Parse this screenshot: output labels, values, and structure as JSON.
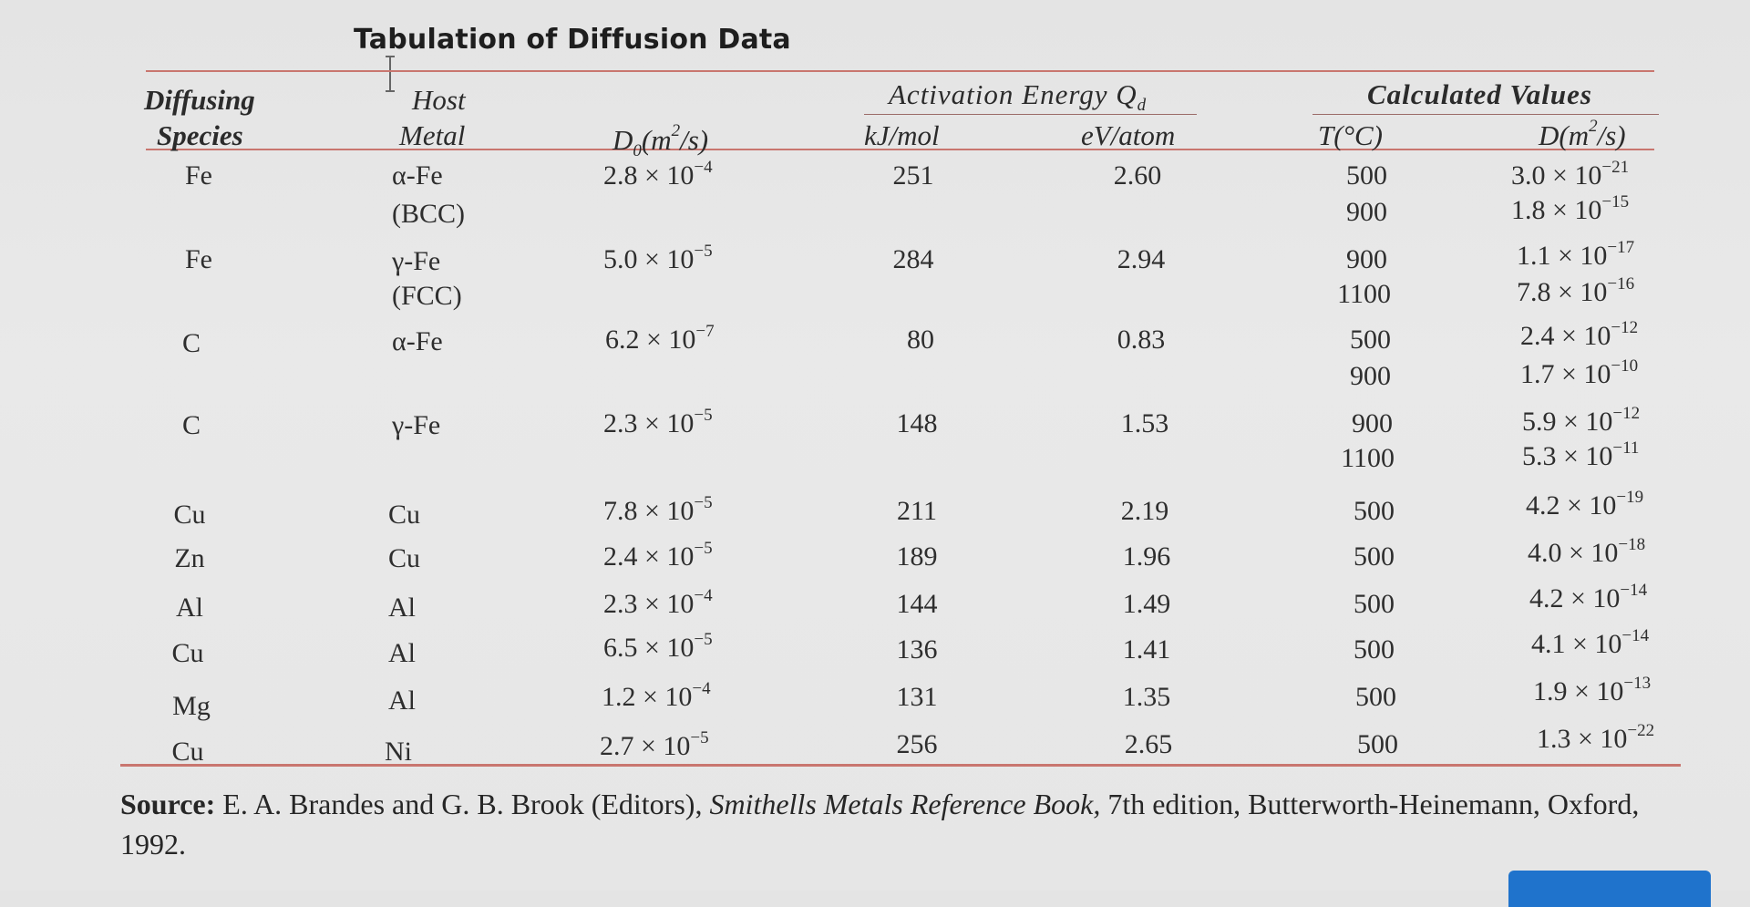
{
  "title": "Tabulation of Diffusion Data",
  "headers": {
    "diffusing_species": [
      "Diffusing",
      "Species"
    ],
    "host_metal": [
      "Host",
      "Metal"
    ],
    "d0": "D",
    "d0_sub": "0",
    "d0_unit": "(m",
    "d0_unit_sup": "2",
    "d0_unit_end": "/s)",
    "activation_energy": "Activation Energy Q",
    "activation_energy_sub": "d",
    "kj_mol": "kJ/mol",
    "ev_atom": "eV/atom",
    "calculated_values": "Calculated Values",
    "t_c": "T(°C)",
    "d_calc": "D(m",
    "d_calc_sup": "2",
    "d_calc_end": "/s)"
  },
  "rows": [
    {
      "species": "Fe",
      "host": "α-Fe",
      "host2": "(BCC)",
      "d0_m": "2.8 × 10",
      "d0_e": "−4",
      "qkj": "251",
      "qev": "2.60",
      "t1": "500",
      "d1m": "3.0 × 10",
      "d1e": "−21",
      "t2": "900",
      "d2m": "1.8 × 10",
      "d2e": "−15"
    },
    {
      "species": "Fe",
      "host": "γ-Fe",
      "host2": "(FCC)",
      "d0_m": "5.0 × 10",
      "d0_e": "−5",
      "qkj": "284",
      "qev": "2.94",
      "t1": "900",
      "d1m": "1.1 × 10",
      "d1e": "−17",
      "t2": "1100",
      "d2m": "7.8 × 10",
      "d2e": "−16"
    },
    {
      "species": "C",
      "host": "α-Fe",
      "host2": "",
      "d0_m": "6.2 × 10",
      "d0_e": "−7",
      "qkj": "80",
      "qev": "0.83",
      "t1": "500",
      "d1m": "2.4 × 10",
      "d1e": "−12",
      "t2": "900",
      "d2m": "1.7 × 10",
      "d2e": "−10"
    },
    {
      "species": "C",
      "host": "γ-Fe",
      "host2": "",
      "d0_m": "2.3 × 10",
      "d0_e": "−5",
      "qkj": "148",
      "qev": "1.53",
      "t1": "900",
      "d1m": "5.9 × 10",
      "d1e": "−12",
      "t2": "1100",
      "d2m": "5.3 × 10",
      "d2e": "−11"
    },
    {
      "species": "Cu",
      "host": "Cu",
      "host2": "",
      "d0_m": "7.8 × 10",
      "d0_e": "−5",
      "qkj": "211",
      "qev": "2.19",
      "t1": "500",
      "d1m": "4.2 × 10",
      "d1e": "−19"
    },
    {
      "species": "Zn",
      "host": "Cu",
      "host2": "",
      "d0_m": "2.4 × 10",
      "d0_e": "−5",
      "qkj": "189",
      "qev": "1.96",
      "t1": "500",
      "d1m": "4.0 × 10",
      "d1e": "−18"
    },
    {
      "species": "Al",
      "host": "Al",
      "host2": "",
      "d0_m": "2.3 × 10",
      "d0_e": "−4",
      "qkj": "144",
      "qev": "1.49",
      "t1": "500",
      "d1m": "4.2 × 10",
      "d1e": "−14"
    },
    {
      "species": "Cu",
      "host": "Al",
      "host2": "",
      "d0_m": "6.5 × 10",
      "d0_e": "−5",
      "qkj": "136",
      "qev": "1.41",
      "t1": "500",
      "d1m": "4.1 × 10",
      "d1e": "−14"
    },
    {
      "species": "Mg",
      "host": "Al",
      "host2": "",
      "d0_m": "1.2 × 10",
      "d0_e": "−4",
      "qkj": "131",
      "qev": "1.35",
      "t1": "500",
      "d1m": "1.9 × 10",
      "d1e": "−13"
    },
    {
      "species": "Cu",
      "host": "Ni",
      "host2": "",
      "d0_m": "2.7 × 10",
      "d0_e": "−5",
      "qkj": "256",
      "qev": "2.65",
      "t1": "500",
      "d1m": "1.3 × 10",
      "d1e": "−22"
    }
  ],
  "source": {
    "label": "Source:",
    "authors": " E. A. Brandes and G. B. Brook (Editors), ",
    "book": "Smithells Metals Reference Book,",
    "rest": " 7th edition, Butterworth-Heinemann, Oxford, 1992."
  },
  "colors": {
    "rule": "#c9766f",
    "accent_button": "#1f73cc"
  },
  "icons": {
    "cursor": "text-cursor-icon"
  }
}
